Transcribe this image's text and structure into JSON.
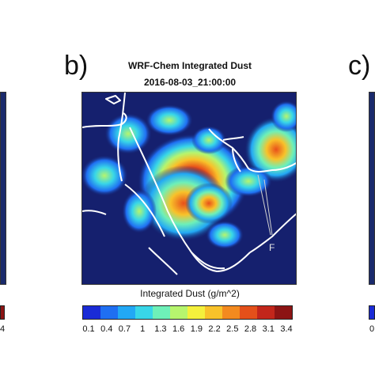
{
  "panels": {
    "b": {
      "letter": "b)"
    },
    "c": {
      "letter": "c)"
    }
  },
  "title": {
    "line1": "WRF-Chem Integrated Dust",
    "line2": "2016-08-03_21:00:00"
  },
  "map": {
    "annotation": "F"
  },
  "colorbar": {
    "label": "Integrated Dust (g/m^2)",
    "ticks": [
      "0.1",
      "0.4",
      "0.7",
      "1",
      "1.3",
      "1.6",
      "1.9",
      "2.2",
      "2.5",
      "2.8",
      "3.1",
      "3.4"
    ],
    "colors": [
      "#1a2bd6",
      "#1f6ff2",
      "#22a8f5",
      "#38d6e8",
      "#6ef0b8",
      "#b6f56e",
      "#f4f03c",
      "#f8c22a",
      "#f38a1f",
      "#e4501a",
      "#c2261b",
      "#8c1414"
    ]
  },
  "left_panel": {
    "tick": "4"
  },
  "right_panel": {
    "tick": "0"
  }
}
